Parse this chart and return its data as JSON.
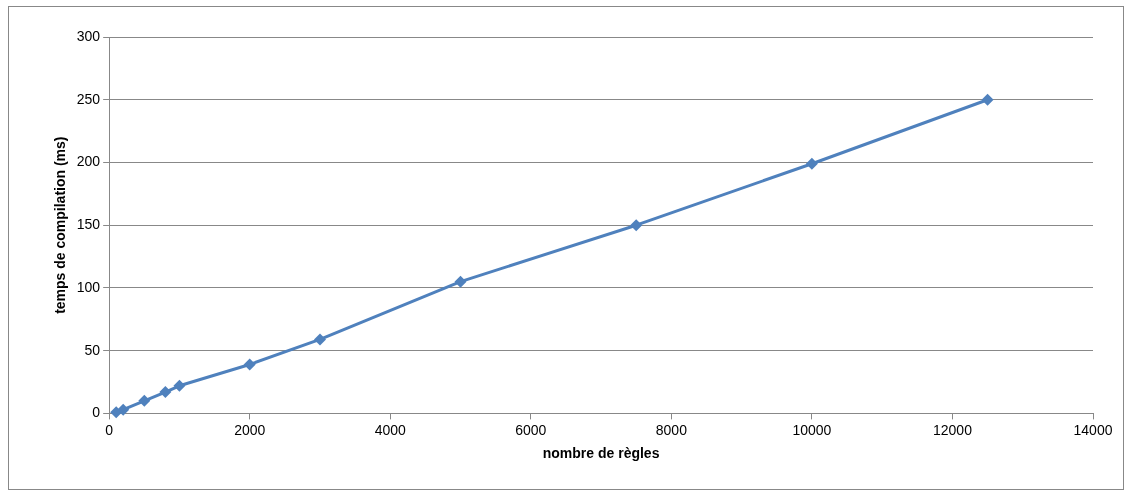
{
  "chart_data": {
    "type": "line",
    "xlabel": "nombre de règles",
    "ylabel": "temps de compilation (ms)",
    "x": [
      100,
      200,
      500,
      800,
      1000,
      2000,
      3000,
      5000,
      7500,
      10000,
      12500
    ],
    "series": [
      {
        "color": "#4f81bd",
        "values": [
          1,
          3,
          10,
          17,
          22,
          39,
          59,
          105,
          150,
          199,
          250
        ]
      }
    ],
    "xlim": [
      0,
      14000
    ],
    "xticks": [
      0,
      2000,
      4000,
      6000,
      8000,
      10000,
      12000,
      14000
    ],
    "ylim": [
      0,
      300
    ],
    "yticks": [
      0,
      50,
      100,
      150,
      200,
      250,
      300
    ],
    "grid": "y",
    "legend": false,
    "marker": "diamond",
    "line_style": "solid"
  }
}
